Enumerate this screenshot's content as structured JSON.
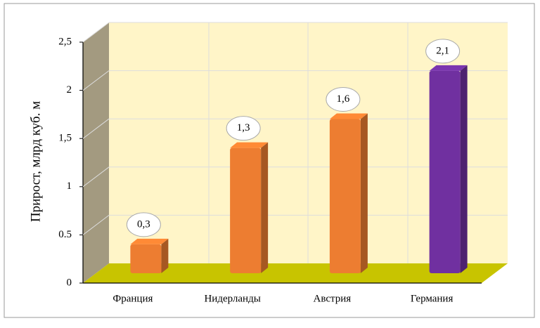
{
  "chart_data": {
    "type": "bar3d",
    "y_label": "Прирост, млрд куб. м",
    "categories": [
      "Франция",
      "Нидерланды",
      "Австрия",
      "Германия"
    ],
    "values": [
      0.3,
      1.3,
      1.6,
      2.1
    ],
    "value_labels": [
      "0,3",
      "1,3",
      "1,6",
      "2,1"
    ],
    "colors": [
      "#ED7D31",
      "#ED7D31",
      "#ED7D31",
      "#7030A0"
    ],
    "ylim": [
      0,
      2.5
    ],
    "yticks": [
      0,
      0.5,
      1,
      {
        "value": 1.5,
        "label": "1,5"
      },
      2,
      {
        "value": 2.5,
        "label": "2,5"
      }
    ],
    "grid": true
  }
}
